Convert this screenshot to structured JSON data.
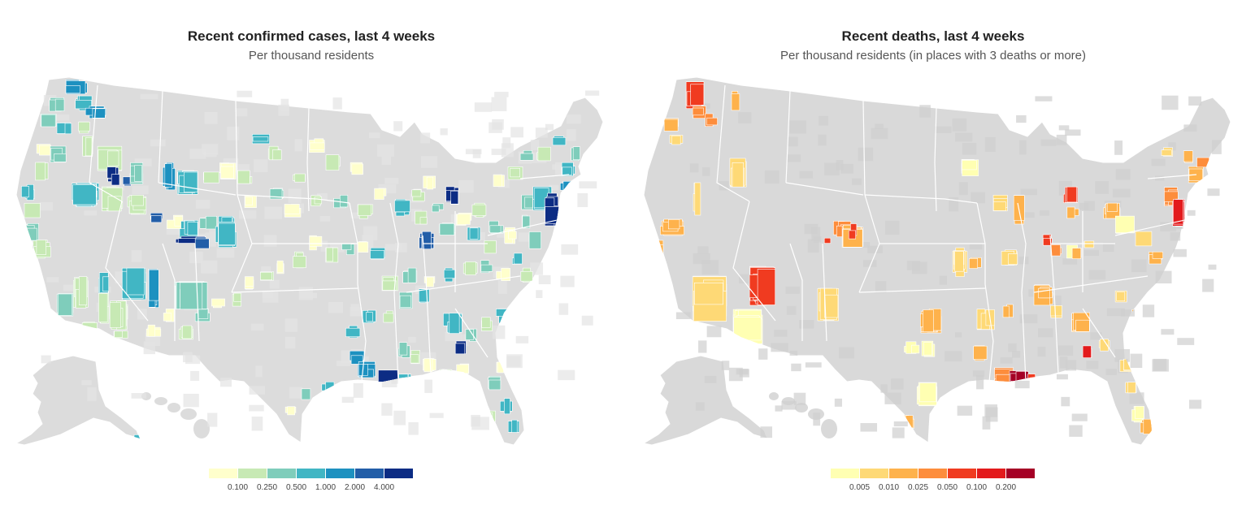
{
  "maps": [
    {
      "title": "Recent confirmed cases, last 4 weeks",
      "subtitle": "Per thousand residents",
      "legend": {
        "colors": [
          "#ffffcc",
          "#c7e9b4",
          "#7fcdbb",
          "#41b6c4",
          "#1d91c0",
          "#225ea8",
          "#0c2c84"
        ],
        "ticks": [
          "0.100",
          "0.250",
          "0.500",
          "1.000",
          "2.000",
          "4.000"
        ]
      },
      "base_color": "#dcdcdc"
    },
    {
      "title": "Recent deaths, last 4 weeks",
      "subtitle": "Per thousand residents (in places with 3 deaths or more)",
      "legend": {
        "colors": [
          "#ffffb2",
          "#fed976",
          "#feb24c",
          "#fd8d3c",
          "#f03b20",
          "#e31a1c",
          "#a50026"
        ],
        "ticks": [
          "0.005",
          "0.010",
          "0.025",
          "0.050",
          "0.100",
          "0.200"
        ]
      },
      "base_color": "#d9d9d9"
    }
  ]
}
